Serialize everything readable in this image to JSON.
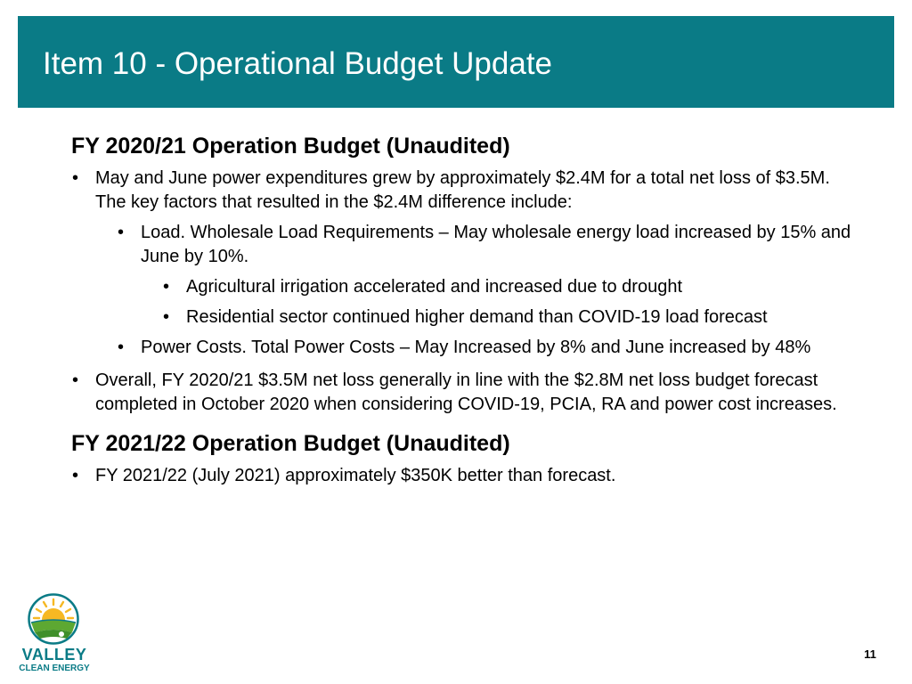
{
  "title": "Item 10 - Operational Budget Update",
  "sections": [
    {
      "heading": "FY 2020/21 Operation Budget (Unaudited)",
      "bullets": [
        "May and June power expenditures grew by approximately $2.4M for a total net loss of $3.5M. The key factors that resulted in the $2.4M difference include:",
        "Load.  Wholesale Load Requirements – May wholesale energy load increased by 15% and June by 10%.",
        "Agricultural irrigation accelerated and increased due to drought",
        "Residential sector continued higher demand than COVID-19 load forecast",
        "Power Costs.  Total Power Costs – May Increased by 8% and June increased by 48%",
        "Overall, FY 2020/21 $3.5M net loss generally in line with the $2.8M net loss budget forecast completed in October 2020 when considering COVID-19, PCIA, RA and power cost increases."
      ]
    },
    {
      "heading": "FY 2021/22 Operation Budget (Unaudited)",
      "bullets": [
        "FY 2021/22 (July 2021) approximately $350K better than forecast."
      ]
    }
  ],
  "logo": {
    "name": "VALLEY",
    "subname": "CLEAN ENERGY"
  },
  "page_number": "11",
  "colors": {
    "accent": "#0a7b86",
    "sun": "#f6b823",
    "field_green": "#5da832"
  }
}
